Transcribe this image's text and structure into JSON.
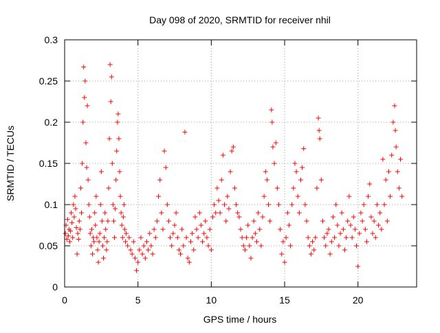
{
  "chart_data": {
    "type": "scatter",
    "title": "Day 098 of 2020, SRMTID for receiver nhil",
    "xlabel": "GPS time / hours",
    "ylabel": "SRMTID / TECUs",
    "xlim": [
      0,
      24
    ],
    "ylim": [
      0,
      0.3
    ],
    "xticks": [
      0,
      5,
      10,
      15,
      20
    ],
    "xtick_labels": [
      "0",
      "5",
      "10",
      "15",
      "20"
    ],
    "yticks": [
      0,
      0.05,
      0.1,
      0.15,
      0.2,
      0.25,
      0.3
    ],
    "ytick_labels": [
      "0",
      "0.05",
      "0.1",
      "0.15",
      "0.2",
      "0.25",
      "0.3"
    ],
    "grid": true,
    "marker": "+",
    "color": "#ff0000",
    "series": [
      {
        "name": "SRMTID",
        "points": [
          [
            0.05,
            0.065
          ],
          [
            0.1,
            0.075
          ],
          [
            0.15,
            0.058
          ],
          [
            0.2,
            0.082
          ],
          [
            0.25,
            0.062
          ],
          [
            0.3,
            0.07
          ],
          [
            0.35,
            0.055
          ],
          [
            0.4,
            0.068
          ],
          [
            0.45,
            0.09
          ],
          [
            0.5,
            0.078
          ],
          [
            0.55,
            0.06
          ],
          [
            0.6,
            0.1
          ],
          [
            0.65,
            0.085
          ],
          [
            0.7,
            0.11
          ],
          [
            0.75,
            0.095
          ],
          [
            0.8,
            0.072
          ],
          [
            0.85,
            0.04
          ],
          [
            0.9,
            0.065
          ],
          [
            0.95,
            0.058
          ],
          [
            1.0,
            0.08
          ],
          [
            1.05,
            0.07
          ],
          [
            1.1,
            0.12
          ],
          [
            1.15,
            0.09
          ],
          [
            1.2,
            0.15
          ],
          [
            1.25,
            0.2
          ],
          [
            1.3,
            0.267
          ],
          [
            1.35,
            0.23
          ],
          [
            1.4,
            0.25
          ],
          [
            1.45,
            0.175
          ],
          [
            1.5,
            0.145
          ],
          [
            1.55,
            0.22
          ],
          [
            1.6,
            0.13
          ],
          [
            1.65,
            0.1
          ],
          [
            1.7,
            0.085
          ],
          [
            1.75,
            0.065
          ],
          [
            1.8,
            0.05
          ],
          [
            1.85,
            0.07
          ],
          [
            1.9,
            0.04
          ],
          [
            1.95,
            0.06
          ],
          [
            2.0,
            0.055
          ],
          [
            2.05,
            0.09
          ],
          [
            2.1,
            0.075
          ],
          [
            2.15,
            0.11
          ],
          [
            2.2,
            0.06
          ],
          [
            2.25,
            0.045
          ],
          [
            2.3,
            0.03
          ],
          [
            2.35,
            0.055
          ],
          [
            2.4,
            0.065
          ],
          [
            2.45,
            0.1
          ],
          [
            2.5,
            0.14
          ],
          [
            2.55,
            0.08
          ],
          [
            2.6,
            0.05
          ],
          [
            2.65,
            0.035
          ],
          [
            2.7,
            0.06
          ],
          [
            2.75,
            0.09
          ],
          [
            2.8,
            0.07
          ],
          [
            2.85,
            0.045
          ],
          [
            2.9,
            0.055
          ],
          [
            2.95,
            0.08
          ],
          [
            3.0,
            0.12
          ],
          [
            3.05,
            0.18
          ],
          [
            3.1,
            0.27
          ],
          [
            3.15,
            0.225
          ],
          [
            3.2,
            0.255
          ],
          [
            3.25,
            0.15
          ],
          [
            3.3,
            0.1
          ],
          [
            3.35,
            0.08
          ],
          [
            3.4,
            0.06
          ],
          [
            3.45,
            0.095
          ],
          [
            3.5,
            0.13
          ],
          [
            3.55,
            0.165
          ],
          [
            3.6,
            0.2
          ],
          [
            3.65,
            0.21
          ],
          [
            3.7,
            0.18
          ],
          [
            3.75,
            0.14
          ],
          [
            3.8,
            0.11
          ],
          [
            3.85,
            0.09
          ],
          [
            3.9,
            0.075
          ],
          [
            3.95,
            0.06
          ],
          [
            4.0,
            0.085
          ],
          [
            4.05,
            0.1
          ],
          [
            4.1,
            0.07
          ],
          [
            4.15,
            0.055
          ],
          [
            4.2,
            0.065
          ],
          [
            4.3,
            0.05
          ],
          [
            4.4,
            0.06
          ],
          [
            4.5,
            0.045
          ],
          [
            4.6,
            0.04
          ],
          [
            4.7,
            0.055
          ],
          [
            4.8,
            0.035
          ],
          [
            4.9,
            0.02
          ],
          [
            5.0,
            0.03
          ],
          [
            5.1,
            0.045
          ],
          [
            5.2,
            0.06
          ],
          [
            5.3,
            0.04
          ],
          [
            5.4,
            0.05
          ],
          [
            5.5,
            0.035
          ],
          [
            5.6,
            0.055
          ],
          [
            5.7,
            0.045
          ],
          [
            5.8,
            0.065
          ],
          [
            5.9,
            0.05
          ],
          [
            6.0,
            0.04
          ],
          [
            6.1,
            0.07
          ],
          [
            6.2,
            0.06
          ],
          [
            6.3,
            0.08
          ],
          [
            6.4,
            0.11
          ],
          [
            6.5,
            0.13
          ],
          [
            6.6,
            0.09
          ],
          [
            6.7,
            0.07
          ],
          [
            6.8,
            0.165
          ],
          [
            6.9,
            0.145
          ],
          [
            7.0,
            0.1
          ],
          [
            7.1,
            0.08
          ],
          [
            7.2,
            0.06
          ],
          [
            7.3,
            0.05
          ],
          [
            7.4,
            0.065
          ],
          [
            7.5,
            0.075
          ],
          [
            7.6,
            0.09
          ],
          [
            7.7,
            0.06
          ],
          [
            7.8,
            0.045
          ],
          [
            7.9,
            0.04
          ],
          [
            8.0,
            0.07
          ],
          [
            8.1,
            0.05
          ],
          [
            8.2,
            0.188
          ],
          [
            8.3,
            0.06
          ],
          [
            8.4,
            0.035
          ],
          [
            8.5,
            0.03
          ],
          [
            8.6,
            0.055
          ],
          [
            8.7,
            0.065
          ],
          [
            8.8,
            0.045
          ],
          [
            8.9,
            0.085
          ],
          [
            9.0,
            0.07
          ],
          [
            9.1,
            0.06
          ],
          [
            9.2,
            0.09
          ],
          [
            9.3,
            0.075
          ],
          [
            9.4,
            0.055
          ],
          [
            9.5,
            0.065
          ],
          [
            9.6,
            0.08
          ],
          [
            9.7,
            0.06
          ],
          [
            9.8,
            0.05
          ],
          [
            9.9,
            0.07
          ],
          [
            10.0,
            0.045
          ],
          [
            10.1,
            0.085
          ],
          [
            10.2,
            0.1
          ],
          [
            10.3,
            0.09
          ],
          [
            10.4,
            0.12
          ],
          [
            10.5,
            0.105
          ],
          [
            10.6,
            0.09
          ],
          [
            10.7,
            0.13
          ],
          [
            10.8,
            0.16
          ],
          [
            10.9,
            0.1
          ],
          [
            11.0,
            0.08
          ],
          [
            11.1,
            0.11
          ],
          [
            11.2,
            0.095
          ],
          [
            11.3,
            0.14
          ],
          [
            11.4,
            0.165
          ],
          [
            11.5,
            0.17
          ],
          [
            11.6,
            0.12
          ],
          [
            11.7,
            0.1
          ],
          [
            11.8,
            0.09
          ],
          [
            11.9,
            0.085
          ],
          [
            12.0,
            0.07
          ],
          [
            12.1,
            0.06
          ],
          [
            12.2,
            0.05
          ],
          [
            12.3,
            0.045
          ],
          [
            12.4,
            0.06
          ],
          [
            12.5,
            0.075
          ],
          [
            12.6,
            0.05
          ],
          [
            12.7,
            0.035
          ],
          [
            12.8,
            0.06
          ],
          [
            12.9,
            0.08
          ],
          [
            13.0,
            0.065
          ],
          [
            13.1,
            0.055
          ],
          [
            13.2,
            0.09
          ],
          [
            13.3,
            0.07
          ],
          [
            13.4,
            0.05
          ],
          [
            13.5,
            0.085
          ],
          [
            13.6,
            0.11
          ],
          [
            13.7,
            0.14
          ],
          [
            13.8,
            0.13
          ],
          [
            13.9,
            0.1
          ],
          [
            14.0,
            0.08
          ],
          [
            14.1,
            0.215
          ],
          [
            14.15,
            0.2
          ],
          [
            14.2,
            0.17
          ],
          [
            14.3,
            0.15
          ],
          [
            14.4,
            0.175
          ],
          [
            14.5,
            0.12
          ],
          [
            14.6,
            0.1
          ],
          [
            14.7,
            0.07
          ],
          [
            14.8,
            0.04
          ],
          [
            14.9,
            0.055
          ],
          [
            15.0,
            0.03
          ],
          [
            15.1,
            0.06
          ],
          [
            15.2,
            0.09
          ],
          [
            15.3,
            0.075
          ],
          [
            15.4,
            0.05
          ],
          [
            15.5,
            0.1
          ],
          [
            15.6,
            0.12
          ],
          [
            15.7,
            0.15
          ],
          [
            15.8,
            0.14
          ],
          [
            15.9,
            0.11
          ],
          [
            16.0,
            0.09
          ],
          [
            16.1,
            0.13
          ],
          [
            16.2,
            0.145
          ],
          [
            16.3,
            0.168
          ],
          [
            16.4,
            0.1
          ],
          [
            16.5,
            0.08
          ],
          [
            16.6,
            0.06
          ],
          [
            16.7,
            0.05
          ],
          [
            16.8,
            0.04
          ],
          [
            16.9,
            0.055
          ],
          [
            17.0,
            0.045
          ],
          [
            17.1,
            0.06
          ],
          [
            17.2,
            0.12
          ],
          [
            17.3,
            0.205
          ],
          [
            17.35,
            0.19
          ],
          [
            17.4,
            0.18
          ],
          [
            17.5,
            0.13
          ],
          [
            17.6,
            0.08
          ],
          [
            17.7,
            0.06
          ],
          [
            17.8,
            0.05
          ],
          [
            17.9,
            0.065
          ],
          [
            18.0,
            0.07
          ],
          [
            18.1,
            0.04
          ],
          [
            18.2,
            0.055
          ],
          [
            18.3,
            0.085
          ],
          [
            18.4,
            0.06
          ],
          [
            18.5,
            0.1
          ],
          [
            18.6,
            0.075
          ],
          [
            18.7,
            0.05
          ],
          [
            18.8,
            0.065
          ],
          [
            18.9,
            0.09
          ],
          [
            19.0,
            0.07
          ],
          [
            19.1,
            0.045
          ],
          [
            19.2,
            0.06
          ],
          [
            19.3,
            0.08
          ],
          [
            19.4,
            0.11
          ],
          [
            19.5,
            0.075
          ],
          [
            19.6,
            0.06
          ],
          [
            19.7,
            0.085
          ],
          [
            19.8,
            0.07
          ],
          [
            19.9,
            0.05
          ],
          [
            20.0,
            0.025
          ],
          [
            20.1,
            0.065
          ],
          [
            20.2,
            0.09
          ],
          [
            20.3,
            0.08
          ],
          [
            20.4,
            0.1
          ],
          [
            20.5,
            0.07
          ],
          [
            20.6,
            0.055
          ],
          [
            20.7,
            0.11
          ],
          [
            20.8,
            0.125
          ],
          [
            20.9,
            0.085
          ],
          [
            21.0,
            0.065
          ],
          [
            21.1,
            0.08
          ],
          [
            21.2,
            0.06
          ],
          [
            21.3,
            0.1
          ],
          [
            21.4,
            0.075
          ],
          [
            21.5,
            0.09
          ],
          [
            21.6,
            0.07
          ],
          [
            21.7,
            0.155
          ],
          [
            21.8,
            0.1
          ],
          [
            21.9,
            0.13
          ],
          [
            22.0,
            0.08
          ],
          [
            22.1,
            0.14
          ],
          [
            22.2,
            0.11
          ],
          [
            22.3,
            0.16
          ],
          [
            22.4,
            0.2
          ],
          [
            22.5,
            0.22
          ],
          [
            22.55,
            0.19
          ],
          [
            22.6,
            0.17
          ],
          [
            22.7,
            0.14
          ],
          [
            22.8,
            0.12
          ],
          [
            22.9,
            0.155
          ],
          [
            23.0,
            0.11
          ]
        ]
      }
    ]
  }
}
